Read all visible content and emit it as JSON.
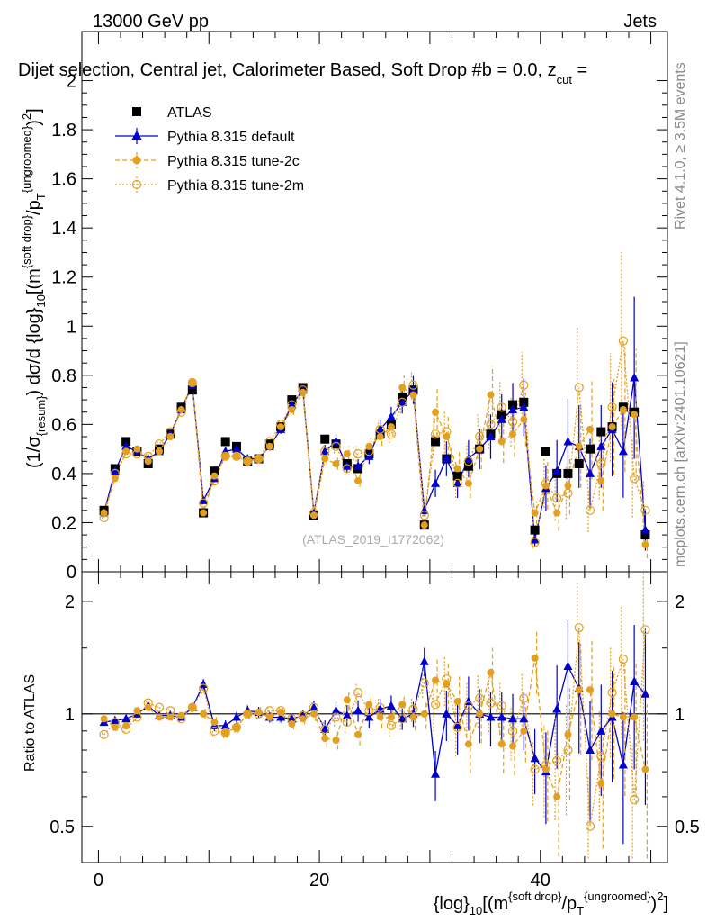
{
  "header": {
    "energy": "13000 GeV pp",
    "category": "Jets",
    "title": "Dijet selection, Central jet, Calorimeter Based, Soft Drop #b = 0.0, z",
    "title_sub": "cut",
    "title_tail": " =",
    "watermark": "(ATLAS_2019_I1772062)",
    "side_rivet": "Rivet 4.1.0, ≥ 3.5M events",
    "side_mcplots": "mcplots.cern.ch [arXiv:2401.10621]"
  },
  "axes": {
    "top_ylabel_prefix": "(1/σ",
    "top_ylabel_sub": "{resum}",
    "top_ylabel_mid": ") dσ/d {log}",
    "top_ylabel_sub2": "10",
    "top_ylabel_tail": "[(m",
    "top_ylabel_sup": "{soft drop}",
    "top_ylabel_tail2": "/p",
    "top_ylabel_sub3": "T",
    "top_ylabel_sup2": "{ungroomed}",
    "top_ylabel_tail3": ")",
    "top_ylabel_sup3": "2",
    "top_ylabel_end": "]",
    "ratio_ylabel": "Ratio to ATLAS",
    "xlabel_prefix": "{log}",
    "xlabel_sub": "10",
    "xlabel_tail": "[(m",
    "xlabel_sup": "{soft drop}",
    "xlabel_tail2": "/p",
    "xlabel_sub2": "T",
    "xlabel_sup2": "{ungroomed}",
    "xlabel_tail3": ")",
    "xlabel_sup3": "2",
    "xlabel_end": "]"
  },
  "chart_data": [
    {
      "type": "scatter",
      "panel": "main",
      "xlim": [
        -1.5,
        51.5
      ],
      "ylim": [
        0,
        2.2
      ],
      "xticks": [
        0,
        20,
        40
      ],
      "yticks": [
        0,
        0.2,
        0.4,
        0.6,
        0.8,
        1.0,
        1.2,
        1.4,
        1.6,
        1.8,
        2.0
      ],
      "ytick_labels": [
        "0",
        "0.2",
        "0.4",
        "0.6",
        "0.8",
        "1",
        "1.2",
        "1.4",
        "1.6",
        "1.8",
        "2"
      ],
      "legend_position": "top-left",
      "x": [
        0.5,
        1.5,
        2.5,
        3.5,
        4.5,
        5.5,
        6.5,
        7.5,
        8.5,
        9.5,
        10.5,
        11.5,
        12.5,
        13.5,
        14.5,
        15.5,
        16.5,
        17.5,
        18.5,
        19.5,
        20.5,
        21.5,
        22.5,
        23.5,
        24.5,
        25.5,
        26.5,
        27.5,
        28.5,
        29.5,
        30.5,
        31.5,
        32.5,
        33.5,
        34.5,
        35.5,
        36.5,
        37.5,
        38.5,
        39.5,
        40.5,
        41.5,
        42.5,
        43.5,
        44.5,
        45.5,
        46.5,
        47.5,
        48.5,
        49.5
      ],
      "series": [
        {
          "name": "ATLAS",
          "color": "#000000",
          "marker": "square",
          "values": [
            0.25,
            0.42,
            0.53,
            0.49,
            0.44,
            0.5,
            0.56,
            0.67,
            0.74,
            0.24,
            0.41,
            0.53,
            0.51,
            0.45,
            0.46,
            0.52,
            0.59,
            0.7,
            0.75,
            0.23,
            0.54,
            0.52,
            0.44,
            0.42,
            0.48,
            0.56,
            0.6,
            0.71,
            0.74,
            0.19,
            0.53,
            0.46,
            0.39,
            0.43,
            0.5,
            0.56,
            0.64,
            0.68,
            0.69,
            0.17,
            0.49,
            0.4,
            0.4,
            0.44,
            0.5,
            0.57,
            0.59,
            0.67,
            0.65,
            0.15
          ]
        },
        {
          "name": "Pythia 8.315 default",
          "color": "#0000cc",
          "marker": "triangle",
          "line": "solid",
          "values": [
            0.24,
            0.41,
            0.51,
            0.49,
            0.46,
            0.49,
            0.56,
            0.66,
            0.76,
            0.29,
            0.38,
            0.49,
            0.5,
            0.46,
            0.46,
            0.51,
            0.58,
            0.68,
            0.74,
            0.24,
            0.49,
            0.53,
            0.43,
            0.43,
            0.47,
            0.58,
            0.63,
            0.69,
            0.74,
            0.25,
            0.36,
            0.46,
            0.36,
            0.46,
            0.5,
            0.55,
            0.62,
            0.66,
            0.67,
            0.13,
            0.34,
            0.41,
            0.53,
            0.51,
            0.4,
            0.51,
            0.58,
            0.49,
            0.79,
            0.17
          ]
        },
        {
          "name": "Pythia 8.315 tune-2c",
          "color": "#e3a020",
          "marker": "filled-circle",
          "line": "dashed",
          "values": [
            0.24,
            0.38,
            0.49,
            0.5,
            0.45,
            0.49,
            0.55,
            0.66,
            0.77,
            0.24,
            0.39,
            0.47,
            0.47,
            0.45,
            0.46,
            0.51,
            0.59,
            0.66,
            0.73,
            0.23,
            0.46,
            0.44,
            0.48,
            0.37,
            0.51,
            0.55,
            0.59,
            0.75,
            0.72,
            0.19,
            0.65,
            0.55,
            0.42,
            0.36,
            0.5,
            0.72,
            0.53,
            0.56,
            0.62,
            0.24,
            0.35,
            0.24,
            0.35,
            0.51,
            0.58,
            0.37,
            0.59,
            0.66,
            0.64,
            0.11
          ]
        },
        {
          "name": "Pythia 8.315 tune-2m",
          "color": "#e3a020",
          "marker": "open-circle",
          "line": "dotted",
          "values": [
            0.22,
            0.4,
            0.48,
            0.48,
            0.47,
            0.52,
            0.57,
            0.65,
            0.77,
            0.28,
            0.37,
            0.47,
            0.47,
            0.45,
            0.46,
            0.53,
            0.6,
            0.68,
            0.74,
            0.24,
            0.49,
            0.51,
            0.42,
            0.48,
            0.49,
            0.58,
            0.56,
            0.69,
            0.76,
            0.23,
            0.56,
            0.57,
            0.36,
            0.45,
            0.55,
            0.6,
            0.67,
            0.61,
            0.76,
            0.12,
            0.36,
            0.3,
            0.32,
            0.75,
            0.25,
            0.44,
            0.67,
            0.94,
            0.38,
            0.25
          ]
        }
      ]
    },
    {
      "type": "scatter",
      "panel": "ratio",
      "xlim": [
        -1.5,
        51.5
      ],
      "ylim": [
        0.4,
        2.4
      ],
      "log_y": true,
      "xticks": [
        0,
        20,
        40
      ],
      "xtick_labels": [
        "0",
        "20",
        "40"
      ],
      "yticks": [
        0.5,
        1,
        2
      ],
      "ytick_labels": [
        "0.5",
        "1",
        "2"
      ],
      "reference_line": 1,
      "x": [
        0.5,
        1.5,
        2.5,
        3.5,
        4.5,
        5.5,
        6.5,
        7.5,
        8.5,
        9.5,
        10.5,
        11.5,
        12.5,
        13.5,
        14.5,
        15.5,
        16.5,
        17.5,
        18.5,
        19.5,
        20.5,
        21.5,
        22.5,
        23.5,
        24.5,
        25.5,
        26.5,
        27.5,
        28.5,
        29.5,
        30.5,
        31.5,
        32.5,
        33.5,
        34.5,
        35.5,
        36.5,
        37.5,
        38.5,
        39.5,
        40.5,
        41.5,
        42.5,
        43.5,
        44.5,
        45.5,
        46.5,
        47.5,
        48.5,
        49.5
      ],
      "series": [
        {
          "name": "Pythia 8.315 default",
          "color": "#0000cc",
          "values": [
            0.95,
            0.96,
            0.97,
            1.0,
            1.05,
            0.99,
            0.99,
            0.98,
            1.04,
            1.2,
            0.93,
            0.93,
            0.98,
            1.02,
            1.01,
            0.98,
            0.98,
            0.97,
            0.99,
            1.04,
            0.91,
            1.02,
            0.99,
            1.02,
            0.98,
            1.03,
            1.05,
            0.97,
            1.0,
            1.38,
            0.69,
            1.0,
            0.93,
            1.08,
            1.0,
            0.98,
            0.98,
            0.97,
            0.97,
            0.76,
            0.7,
            1.03,
            1.34,
            1.17,
            0.8,
            0.9,
            0.98,
            0.73,
            1.22,
            1.13
          ]
        },
        {
          "name": "Pythia 8.315 tune-2c",
          "color": "#e3a020",
          "values": [
            0.97,
            0.92,
            0.93,
            1.02,
            1.04,
            0.98,
            0.98,
            0.99,
            1.04,
            1.0,
            0.95,
            0.89,
            0.92,
            1.0,
            1.01,
            0.98,
            1.01,
            0.94,
            0.97,
            1.0,
            0.86,
            0.85,
            1.09,
            0.88,
            1.06,
            0.98,
            0.98,
            1.06,
            0.98,
            1.0,
            1.23,
            1.2,
            1.08,
            0.83,
            1.0,
            1.29,
            0.83,
            0.82,
            0.9,
            1.41,
            0.71,
            0.6,
            0.88,
            1.16,
            1.16,
            0.65,
            1.0,
            0.98,
            0.98,
            0.71
          ]
        },
        {
          "name": "Pythia 8.315 tune-2m",
          "color": "#e3a020",
          "values": [
            0.88,
            0.95,
            0.91,
            0.98,
            1.07,
            1.04,
            1.02,
            0.97,
            1.04,
            1.17,
            0.9,
            0.89,
            0.92,
            1.0,
            1.0,
            1.02,
            1.02,
            0.97,
            0.99,
            1.04,
            0.91,
            0.98,
            0.95,
            1.14,
            1.02,
            1.04,
            0.93,
            0.97,
            1.03,
            1.21,
            1.06,
            1.24,
            0.92,
            1.05,
            1.1,
            1.07,
            1.05,
            0.9,
            1.1,
            0.71,
            0.73,
            0.75,
            0.8,
            1.7,
            0.5,
            0.77,
            1.14,
            1.4,
            0.59,
            1.68
          ]
        }
      ]
    }
  ]
}
